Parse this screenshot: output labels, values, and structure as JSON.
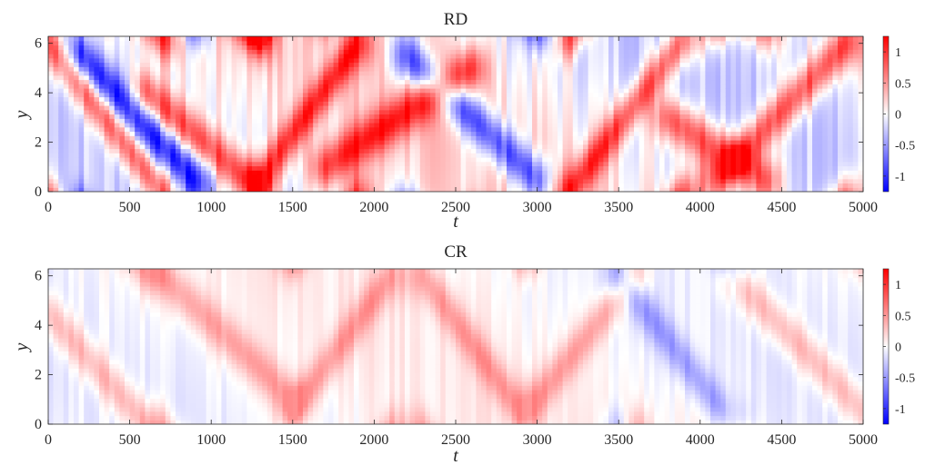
{
  "chart_data": [
    {
      "type": "heatmap",
      "title": "RD",
      "xlabel": "t",
      "ylabel": "y",
      "xlim": [
        0,
        5000
      ],
      "ylim": [
        0,
        6.283
      ],
      "xticks": [
        0,
        500,
        1000,
        1500,
        2000,
        2500,
        3000,
        3500,
        4000,
        4500,
        5000
      ],
      "xtick_labels": [
        "0",
        "500",
        "1000",
        "1500",
        "2000",
        "2500",
        "3000",
        "3500",
        "4000",
        "4500",
        "5000"
      ],
      "yticks": [
        0,
        2,
        4,
        6
      ],
      "ytick_labels": [
        "0",
        "2",
        "4",
        "6"
      ],
      "colorbar": {
        "colormap": "blue-white-red",
        "range": [
          -1.25,
          1.25
        ],
        "ticks": [
          -1,
          -0.5,
          0,
          0.5,
          1
        ],
        "tick_labels": [
          "-1",
          "-0.5",
          "0",
          "0.5",
          "1"
        ],
        "min_color": "#0000ff",
        "mid_color": "#ffffff",
        "max_color": "#ff0000"
      },
      "field": {
        "description_of_pattern": "traveling diagonal bands of positive and negative amplitude wrapping in y",
        "amplitude": 1.0,
        "bands": [
          {
            "t_start": 0,
            "t_end": 700,
            "y_start": 6.0,
            "y_end": 0.0,
            "sign": 1
          },
          {
            "t_start": 200,
            "t_end": 900,
            "y_start": 5.5,
            "y_end": 0.5,
            "sign": -1
          },
          {
            "t_start": 600,
            "t_end": 1300,
            "y_start": 4.0,
            "y_end": 0.0,
            "sign": 1
          },
          {
            "t_start": 1300,
            "t_end": 1900,
            "y_start": 0.5,
            "y_end": 6.0,
            "sign": 1
          },
          {
            "t_start": 1700,
            "t_end": 2600,
            "y_start": 1.0,
            "y_end": 5.0,
            "sign": 1
          },
          {
            "t_start": 2200,
            "t_end": 3000,
            "y_start": 5.5,
            "y_end": 0.5,
            "sign": -1
          },
          {
            "t_start": 3200,
            "t_end": 3900,
            "y_start": 0.0,
            "y_end": 6.2,
            "sign": 1
          },
          {
            "t_start": 3800,
            "t_end": 4400,
            "y_start": 3.0,
            "y_end": 0.5,
            "sign": 1
          },
          {
            "t_start": 4100,
            "t_end": 4900,
            "y_start": 0.5,
            "y_end": 6.0,
            "sign": 1
          }
        ]
      }
    },
    {
      "type": "heatmap",
      "title": "CR",
      "xlabel": "t",
      "ylabel": "y",
      "xlim": [
        0,
        5000
      ],
      "ylim": [
        0,
        6.283
      ],
      "xticks": [
        0,
        500,
        1000,
        1500,
        2000,
        2500,
        3000,
        3500,
        4000,
        4500,
        5000
      ],
      "xtick_labels": [
        "0",
        "500",
        "1000",
        "1500",
        "2000",
        "2500",
        "3000",
        "3500",
        "4000",
        "4500",
        "5000"
      ],
      "yticks": [
        0,
        2,
        4,
        6
      ],
      "ytick_labels": [
        "0",
        "2",
        "4",
        "6"
      ],
      "colorbar": {
        "colormap": "blue-white-red",
        "range": [
          -1.25,
          1.25
        ],
        "ticks": [
          -1,
          -0.5,
          0,
          0.5,
          1
        ],
        "tick_labels": [
          "-1",
          "-0.5",
          "0",
          "0.5",
          "1"
        ],
        "min_color": "#0000ff",
        "mid_color": "#ffffff",
        "max_color": "#ff0000"
      },
      "field": {
        "description_of_pattern": "weaker, faster diagonal bands of alternating sign",
        "amplitude": 0.45,
        "bands": [
          {
            "t_start": 0,
            "t_end": 600,
            "y_start": 4.5,
            "y_end": 0.0,
            "sign": 1
          },
          {
            "t_start": 700,
            "t_end": 1500,
            "y_start": 6.0,
            "y_end": 1.0,
            "sign": 1
          },
          {
            "t_start": 1500,
            "t_end": 2100,
            "y_start": 0.5,
            "y_end": 6.0,
            "sign": 1
          },
          {
            "t_start": 2300,
            "t_end": 2900,
            "y_start": 6.0,
            "y_end": 0.5,
            "sign": 1
          },
          {
            "t_start": 3000,
            "t_end": 3600,
            "y_start": 1.0,
            "y_end": 6.0,
            "sign": 1
          },
          {
            "t_start": 3500,
            "t_end": 4200,
            "y_start": 6.0,
            "y_end": 0.0,
            "sign": -1
          },
          {
            "t_start": 4200,
            "t_end": 5000,
            "y_start": 6.0,
            "y_end": 0.5,
            "sign": 1
          }
        ]
      }
    }
  ]
}
